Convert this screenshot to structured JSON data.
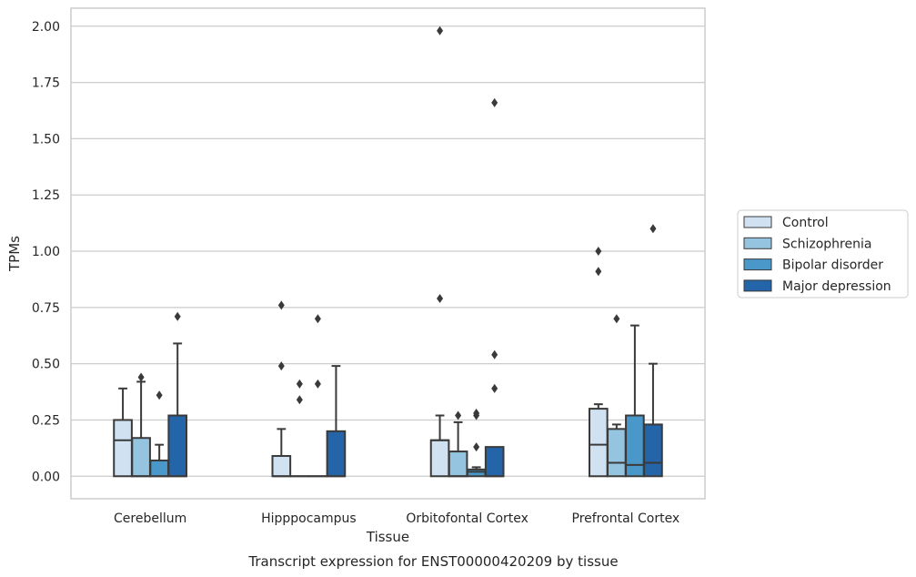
{
  "chart_data": {
    "type": "box",
    "xlabel": "Tissue",
    "ylabel": "TPMs",
    "caption": "Transcript expression for ENST00000420209 by tissue",
    "ylim": [
      -0.1,
      2.08
    ],
    "yticks": [
      "0.00",
      "0.25",
      "0.50",
      "0.75",
      "1.00",
      "1.25",
      "1.50",
      "1.75",
      "2.00"
    ],
    "grid": "horizontal",
    "legend_position": "right",
    "categories": [
      "Cerebellum",
      "Hipppocampus",
      "Orbitofontal Cortex",
      "Prefrontal Cortex"
    ],
    "series": [
      {
        "name": "Control",
        "color": "#d0e1f2",
        "boxes": [
          {
            "q1": 0.0,
            "median": 0.16,
            "q3": 0.25,
            "whisker_low": 0.0,
            "whisker_high": 0.39,
            "outliers": []
          },
          {
            "q1": 0.0,
            "median": 0.0,
            "q3": 0.09,
            "whisker_low": 0.0,
            "whisker_high": 0.21,
            "outliers": [
              0.49,
              0.76
            ]
          },
          {
            "q1": 0.0,
            "median": 0.16,
            "q3": 0.16,
            "whisker_low": 0.0,
            "whisker_high": 0.27,
            "outliers": [
              0.79,
              1.98
            ]
          },
          {
            "q1": 0.0,
            "median": 0.14,
            "q3": 0.3,
            "whisker_low": 0.0,
            "whisker_high": 0.32,
            "outliers": [
              0.91,
              1.0
            ]
          }
        ]
      },
      {
        "name": "Schizophrenia",
        "color": "#94c4df",
        "boxes": [
          {
            "q1": 0.0,
            "median": 0.0,
            "q3": 0.17,
            "whisker_low": 0.0,
            "whisker_high": 0.42,
            "outliers": [
              0.44
            ]
          },
          {
            "q1": 0.0,
            "median": 0.0,
            "q3": 0.0,
            "whisker_low": 0.0,
            "whisker_high": 0.0,
            "outliers": [
              0.34,
              0.41
            ]
          },
          {
            "q1": 0.0,
            "median": 0.0,
            "q3": 0.11,
            "whisker_low": 0.0,
            "whisker_high": 0.24,
            "outliers": [
              0.27
            ]
          },
          {
            "q1": 0.0,
            "median": 0.06,
            "q3": 0.21,
            "whisker_low": 0.0,
            "whisker_high": 0.23,
            "outliers": [
              0.7
            ]
          }
        ]
      },
      {
        "name": "Bipolar disorder",
        "color": "#4a98c9",
        "boxes": [
          {
            "q1": 0.0,
            "median": 0.0,
            "q3": 0.07,
            "whisker_low": 0.0,
            "whisker_high": 0.14,
            "outliers": [
              0.36
            ]
          },
          {
            "q1": 0.0,
            "median": 0.0,
            "q3": 0.0,
            "whisker_low": 0.0,
            "whisker_high": 0.0,
            "outliers": [
              0.41,
              0.7
            ]
          },
          {
            "q1": 0.0,
            "median": 0.02,
            "q3": 0.03,
            "whisker_low": 0.0,
            "whisker_high": 0.04,
            "outliers": [
              0.13,
              0.27,
              0.28
            ]
          },
          {
            "q1": 0.0,
            "median": 0.05,
            "q3": 0.27,
            "whisker_low": 0.0,
            "whisker_high": 0.67,
            "outliers": []
          }
        ]
      },
      {
        "name": "Major depression",
        "color": "#2464a8",
        "boxes": [
          {
            "q1": 0.0,
            "median": 0.0,
            "q3": 0.27,
            "whisker_low": 0.0,
            "whisker_high": 0.59,
            "outliers": [
              0.71
            ]
          },
          {
            "q1": 0.0,
            "median": 0.0,
            "q3": 0.2,
            "whisker_low": 0.0,
            "whisker_high": 0.49,
            "outliers": []
          },
          {
            "q1": 0.0,
            "median": 0.0,
            "q3": 0.13,
            "whisker_low": 0.0,
            "whisker_high": 0.13,
            "outliers": [
              0.39,
              0.54,
              1.66
            ]
          },
          {
            "q1": 0.0,
            "median": 0.06,
            "q3": 0.23,
            "whisker_low": 0.0,
            "whisker_high": 0.5,
            "outliers": [
              1.1
            ]
          }
        ]
      }
    ]
  }
}
